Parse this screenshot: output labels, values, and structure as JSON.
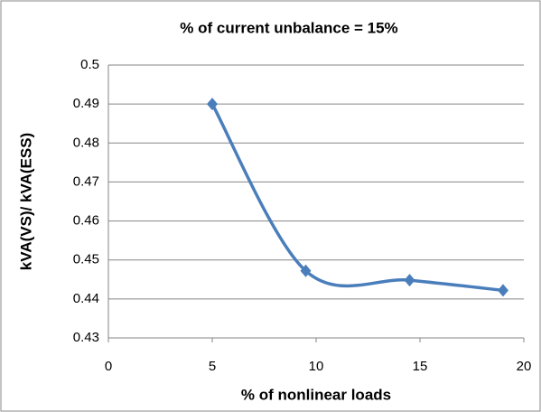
{
  "chart_data": {
    "type": "line",
    "title": "% of current unbalance = 15%",
    "x_label": "% of nonlinear loads",
    "y_label": "kVA(VS)/ kVA(ESS)",
    "x": [
      5,
      9.5,
      14.5,
      19
    ],
    "values": [
      0.49,
      0.4472,
      0.4448,
      0.4422
    ],
    "color": "#4a7ebb",
    "smooth": true,
    "marker": "diamond",
    "xlim": [
      0,
      20
    ],
    "xticks": [
      0,
      5,
      10,
      15,
      20
    ],
    "ylim": [
      0.43,
      0.5
    ],
    "yticks": [
      0.43,
      0.44,
      0.45,
      0.46,
      0.47,
      0.48,
      0.49,
      0.5
    ],
    "grid": true
  }
}
